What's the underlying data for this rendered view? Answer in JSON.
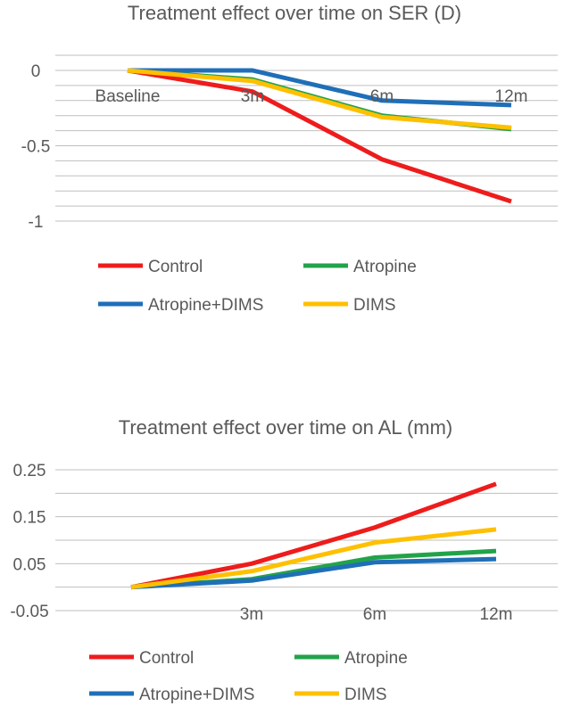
{
  "chart_data": [
    {
      "type": "line",
      "title": "Treatment effect over time on SER (D)",
      "xlabel": "",
      "ylabel": "",
      "categories": [
        "Baseline",
        "3m",
        "6m",
        "12m"
      ],
      "ylim": [
        -1,
        0
      ],
      "yticks": [
        0,
        -0.5,
        -1
      ],
      "ytick_labels": [
        "0",
        "-0.5",
        "-1"
      ],
      "grid": true,
      "legend_position": "bottom",
      "series": [
        {
          "name": "Control",
          "color": "#ee1c1c",
          "values": [
            0,
            -0.14,
            -0.59,
            -0.87
          ]
        },
        {
          "name": "Atropine",
          "color": "#22a34a",
          "values": [
            0,
            -0.06,
            -0.3,
            -0.39
          ]
        },
        {
          "name": "Atropine+DIMS",
          "color": "#1f6fb8",
          "values": [
            0,
            0.0,
            -0.2,
            -0.23
          ]
        },
        {
          "name": "DIMS",
          "color": "#ffc000",
          "values": [
            0,
            -0.07,
            -0.31,
            -0.38
          ]
        }
      ]
    },
    {
      "type": "line",
      "title": "Treatment effect over time on AL (mm)",
      "xlabel": "",
      "ylabel": "",
      "categories": [
        "",
        "3m",
        "6m",
        "12m"
      ],
      "ylim": [
        -0.05,
        0.25
      ],
      "yticks": [
        0.25,
        0.15,
        0.05,
        -0.05
      ],
      "ytick_labels": [
        "0.25",
        "0.15",
        "0.05",
        "-0.05"
      ],
      "grid": true,
      "legend_position": "bottom",
      "series": [
        {
          "name": "Control",
          "color": "#ee1c1c",
          "values": [
            0,
            0.05,
            0.127,
            0.22
          ]
        },
        {
          "name": "Atropine",
          "color": "#22a34a",
          "values": [
            0,
            0.017,
            0.063,
            0.077
          ]
        },
        {
          "name": "Atropine+DIMS",
          "color": "#1f6fb8",
          "values": [
            0,
            0.014,
            0.053,
            0.06
          ]
        },
        {
          "name": "DIMS",
          "color": "#ffc000",
          "values": [
            0,
            0.034,
            0.095,
            0.123
          ]
        }
      ]
    }
  ]
}
